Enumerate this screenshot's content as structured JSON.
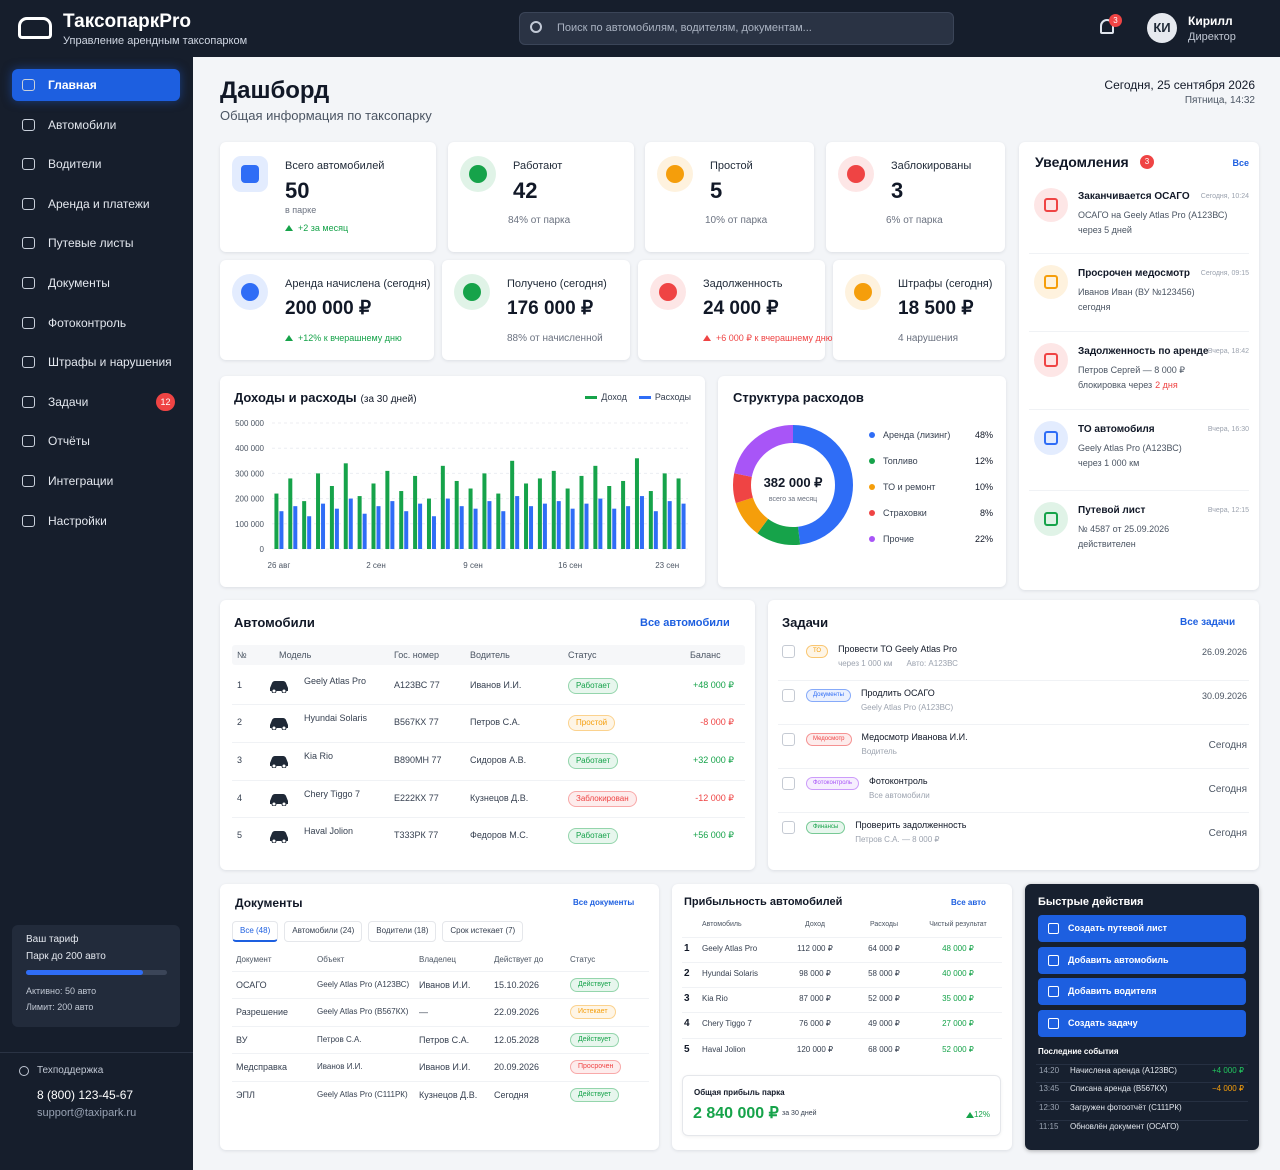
{
  "header": {
    "brand": "ТаксопаркPro",
    "tagline": "Управление арендным таксопарком",
    "search_placeholder": "Поиск по автомобилям, водителям, документам...",
    "notifications": 3,
    "user_initials": "КИ",
    "user_name": "Кирилл",
    "user_role": "Директор"
  },
  "sidebar": {
    "nav": [
      {
        "label": "Главная",
        "active": true
      },
      {
        "label": "Автомобили"
      },
      {
        "label": "Водители"
      },
      {
        "label": "Аренда и платежи"
      },
      {
        "label": "Путевые листы"
      },
      {
        "label": "Документы"
      },
      {
        "label": "Фотоконтроль"
      },
      {
        "label": "Штрафы и нарушения"
      },
      {
        "label": "Задачи",
        "badge": 12
      },
      {
        "label": "Отчёты"
      },
      {
        "label": "Интеграции"
      },
      {
        "label": "Настройки"
      }
    ],
    "tariff": {
      "title": "Ваш тариф",
      "plan": "Парк до 200 авто",
      "active_label": "Активно: 50 авто",
      "limit_label": "Лимит: 200 авто"
    },
    "support": {
      "title": "Техподдержка",
      "phone": "8 (800) 123-45-67",
      "email": "support@taxipark.ru"
    }
  },
  "page": {
    "title": "Дашборд",
    "subtitle": "Общая информация по таксопарку",
    "date": "Сегодня, 25 сентября 2026",
    "time": "Пятница, 14:32"
  },
  "kpis": [
    {
      "label": "Всего автомобилей",
      "value": 50,
      "note": "в парке",
      "delta": "+2 за месяц",
      "delta_color": "#16a34a",
      "color": "#2f6df6"
    },
    {
      "label": "Работают",
      "value": 42,
      "note": "84% от парка",
      "color": "#16a34a"
    },
    {
      "label": "Простой",
      "value": 5,
      "note": "10% от парка",
      "color": "#f59e0b"
    },
    {
      "label": "Заблокированы",
      "value": 3,
      "note": "6% от парка",
      "color": "#ef4444"
    },
    {
      "label": "Аренда начислена (сегодня)",
      "value": "200 000 ₽",
      "delta": "+12% к вчерашнему дню",
      "delta_color": "#16a34a",
      "color": "#2f6df6"
    },
    {
      "label": "Получено (сегодня)",
      "value": "176 000 ₽",
      "note": "88% от начисленной",
      "color": "#16a34a"
    },
    {
      "label": "Задолженность",
      "value": "24 000 ₽",
      "delta": "+6 000 ₽ к вчерашнему дню",
      "delta_color": "#ef4444",
      "color": "#ef4444"
    },
    {
      "label": "Штрафы (сегодня)",
      "value": "18 500 ₽",
      "note": "4 нарушения",
      "color": "#f59e0b"
    }
  ],
  "chart_data": [
    {
      "type": "bar",
      "title": "Доходы и расходы",
      "subtitle": "(за 30 дней)",
      "categories": [
        "26 авг",
        null,
        null,
        null,
        null,
        null,
        null,
        "2 сен",
        null,
        null,
        null,
        null,
        null,
        null,
        "9 сен",
        null,
        null,
        null,
        null,
        null,
        null,
        "16 сен",
        null,
        null,
        null,
        null,
        null,
        null,
        "23 сен",
        null
      ],
      "series": [
        {
          "name": "Доход",
          "color": "#16a34a",
          "values": [
            220000,
            280000,
            190000,
            300000,
            250000,
            340000,
            210000,
            260000,
            310000,
            230000,
            290000,
            200000,
            330000,
            270000,
            240000,
            300000,
            220000,
            350000,
            260000,
            280000,
            310000,
            240000,
            290000,
            330000,
            250000,
            270000,
            360000,
            230000,
            300000,
            280000
          ]
        },
        {
          "name": "Расходы",
          "color": "#2f6df6",
          "values": [
            150000,
            170000,
            130000,
            180000,
            160000,
            200000,
            140000,
            170000,
            190000,
            150000,
            180000,
            130000,
            200000,
            170000,
            160000,
            190000,
            150000,
            210000,
            170000,
            180000,
            190000,
            160000,
            180000,
            200000,
            160000,
            170000,
            210000,
            150000,
            190000,
            180000
          ]
        }
      ],
      "ylim": [
        0,
        500000
      ],
      "yticks": [
        0,
        {
          "value": 100000,
          "label": "100 000"
        },
        {
          "value": 200000,
          "label": "200 000"
        },
        {
          "value": 300000,
          "label": "300 000"
        },
        {
          "value": 400000,
          "label": "400 000"
        },
        {
          "value": 500000,
          "label": "500 000"
        }
      ],
      "grid": true,
      "legend": "top-right"
    },
    {
      "type": "donut",
      "title": "Структура расходов",
      "center_value": "382 000 ₽",
      "center_label": "всего за месяц",
      "categories": [
        "Аренда (лизинг)",
        "Топливо",
        "ТО и ремонт",
        "Страховки",
        "Прочие"
      ],
      "values": [
        48,
        12,
        10,
        8,
        22
      ],
      "value_labels": [
        "48%",
        "12%",
        "10%",
        "8%",
        "22%"
      ],
      "colors": [
        "#2f6df6",
        "#16a34a",
        "#f59e0b",
        "#ef4444",
        "#a855f7"
      ]
    }
  ],
  "notifications": {
    "title": "Уведомления",
    "count": 3,
    "link": "Все",
    "items": [
      {
        "title": "Заканчивается ОСАГО",
        "time": "Сегодня, 10:24",
        "lines": [
          "ОСАГО на Geely Atlas Pro (А123ВС)",
          "через 5 дней"
        ],
        "color": "#ef4444"
      },
      {
        "title": "Просрочен медосмотр",
        "time": "Сегодня, 09:15",
        "lines": [
          "Иванов Иван (ВУ №123456)",
          "сегодня"
        ],
        "color": "#f59e0b"
      },
      {
        "title": "Задолженность по аренде",
        "time": "Вчера, 18:42",
        "lines": [
          "Петров Сергей — 8 000 ₽",
          "блокировка через"
        ],
        "highlight": "2 дня",
        "color": "#ef4444"
      },
      {
        "title": "ТО автомобиля",
        "time": "Вчера, 16:30",
        "lines": [
          "Geely Atlas Pro (А123ВС)",
          "через 1 000 км"
        ],
        "color": "#2f6df6"
      },
      {
        "title": "Путевой лист",
        "time": "Вчера, 12:15",
        "lines": [
          "№ 4587 от 25.09.2026",
          "действителен"
        ],
        "color": "#16a34a"
      }
    ]
  },
  "cars": {
    "title": "Автомобили",
    "link": "Все автомобили",
    "columns": [
      "№",
      "Модель",
      "Гос. номер",
      "Водитель",
      "Статус",
      "Баланс"
    ],
    "rows": [
      {
        "n": 1,
        "model": "Geely Atlas Pro",
        "plate": "А123ВС 77",
        "driver": "Иванов И.И.",
        "status": "Работает",
        "status_color": "#16a34a",
        "balance": "+48 000 ₽"
      },
      {
        "n": 2,
        "model": "Hyundai Solaris",
        "plate": "В567КХ 77",
        "driver": "Петров С.А.",
        "status": "Простой",
        "status_color": "#f59e0b",
        "balance": "-8 000 ₽"
      },
      {
        "n": 3,
        "model": "Kia Rio",
        "plate": "В890МН 77",
        "driver": "Сидоров А.В.",
        "status": "Работает",
        "status_color": "#16a34a",
        "balance": "+32 000 ₽"
      },
      {
        "n": 4,
        "model": "Chery Tiggo 7",
        "plate": "Е222КХ 77",
        "driver": "Кузнецов Д.В.",
        "status": "Заблокирован",
        "status_color": "#ef4444",
        "balance": "-12 000 ₽"
      },
      {
        "n": 5,
        "model": "Haval Jolion",
        "plate": "Т333РК 77",
        "driver": "Федоров М.С.",
        "status": "Работает",
        "status_color": "#16a34a",
        "balance": "+56 000 ₽"
      }
    ]
  },
  "tasks": {
    "title": "Задачи",
    "link": "Все задачи",
    "items": [
      {
        "tag": "ТО",
        "tag_color": "#f59e0b",
        "title": "Провести ТО Geely Atlas Pro",
        "sub": [
          "через 1 000 км",
          "Авто: А123ВС"
        ],
        "date": "26.09.2026"
      },
      {
        "tag": "Документы",
        "tag_color": "#2f6df6",
        "title": "Продлить ОСАГО",
        "sub": [
          "Geely Atlas Pro (А123ВС)"
        ],
        "date": "30.09.2026"
      },
      {
        "tag": "Медосмотр",
        "tag_color": "#ef4444",
        "title": "Медосмотр Иванова И.И.",
        "sub": [
          "Водитель"
        ],
        "date": "Сегодня"
      },
      {
        "tag": "Фотоконтроль",
        "tag_color": "#a855f7",
        "title": "Фотоконтроль",
        "sub": [
          "Все автомобили"
        ],
        "date": "Сегодня"
      },
      {
        "tag": "Финансы",
        "tag_color": "#16a34a",
        "title": "Проверить задолженность",
        "sub": [
          "Петров С.А. — 8 000 ₽"
        ],
        "date": "Сегодня"
      }
    ]
  },
  "documents": {
    "title": "Документы",
    "link": "Все документы",
    "tabs": [
      "Все (48)",
      "Автомобили (24)",
      "Водители (18)",
      "Срок истекает (7)"
    ],
    "columns": [
      "Документ",
      "Объект",
      "Владелец",
      "Действует до",
      "Статус"
    ],
    "rows": [
      {
        "doc": "ОСАГО",
        "object": "Geely Atlas Pro (А123ВС)",
        "owner": "Иванов И.И.",
        "until": "15.10.2026",
        "status": "Действует",
        "status_color": "#16a34a"
      },
      {
        "doc": "Разрешение",
        "object": "Geely Atlas Pro (В567КХ)",
        "owner": "—",
        "until": "22.09.2026",
        "status": "Истекает",
        "status_color": "#f59e0b"
      },
      {
        "doc": "ВУ",
        "object": "Петров С.А.",
        "owner": "Петров С.А.",
        "until": "12.05.2028",
        "status": "Действует",
        "status_color": "#16a34a"
      },
      {
        "doc": "Медсправка",
        "object": "Иванов И.И.",
        "owner": "Иванов И.И.",
        "until": "20.09.2026",
        "status": "Просрочен",
        "status_color": "#ef4444"
      },
      {
        "doc": "ЭПЛ",
        "object": "Geely Atlas Pro (С111РК)",
        "owner": "Кузнецов Д.В.",
        "until": "Сегодня",
        "status": "Действует",
        "status_color": "#16a34a"
      }
    ]
  },
  "profit": {
    "title": "Прибыльность автомобилей",
    "link": "Все авто",
    "columns": [
      "Автомобиль",
      "Доход",
      "Расходы",
      "Чистый результат"
    ],
    "rows": [
      {
        "n": 1,
        "car": "Geely Atlas Pro",
        "income": "112 000 ₽",
        "expense": "64 000 ₽",
        "net": "48 000 ₽"
      },
      {
        "n": 2,
        "car": "Hyundai Solaris",
        "income": "98 000 ₽",
        "expense": "58 000 ₽",
        "net": "40 000 ₽"
      },
      {
        "n": 3,
        "car": "Kia Rio",
        "income": "87 000 ₽",
        "expense": "52 000 ₽",
        "net": "35 000 ₽"
      },
      {
        "n": 4,
        "car": "Chery Tiggo 7",
        "income": "76 000 ₽",
        "expense": "49 000 ₽",
        "net": "27 000 ₽"
      },
      {
        "n": 5,
        "car": "Haval Jolion",
        "income": "120 000 ₽",
        "expense": "68 000 ₽",
        "net": "52 000 ₽"
      }
    ],
    "total_label": "Общая прибыль парка",
    "total": "2 840 000 ₽",
    "period": "за 30 дней",
    "change": "12%"
  },
  "quick": {
    "title": "Быстрые действия",
    "actions": [
      "Создать путевой лист",
      "Добавить автомобиль",
      "Добавить водителя",
      "Создать задачу"
    ],
    "events_title": "Последние события",
    "events": [
      {
        "time": "14:20",
        "text": "Начислена аренда (А123ВС)",
        "amount": "+4 000 ₽"
      },
      {
        "time": "13:45",
        "text": "Списана аренда (В567КХ)",
        "amount": "−4 000 ₽"
      },
      {
        "time": "12:30",
        "text": "Загружен фотоотчёт (С111РК)"
      },
      {
        "time": "11:15",
        "text": "Обновлён документ (ОСАГО)"
      }
    ]
  }
}
